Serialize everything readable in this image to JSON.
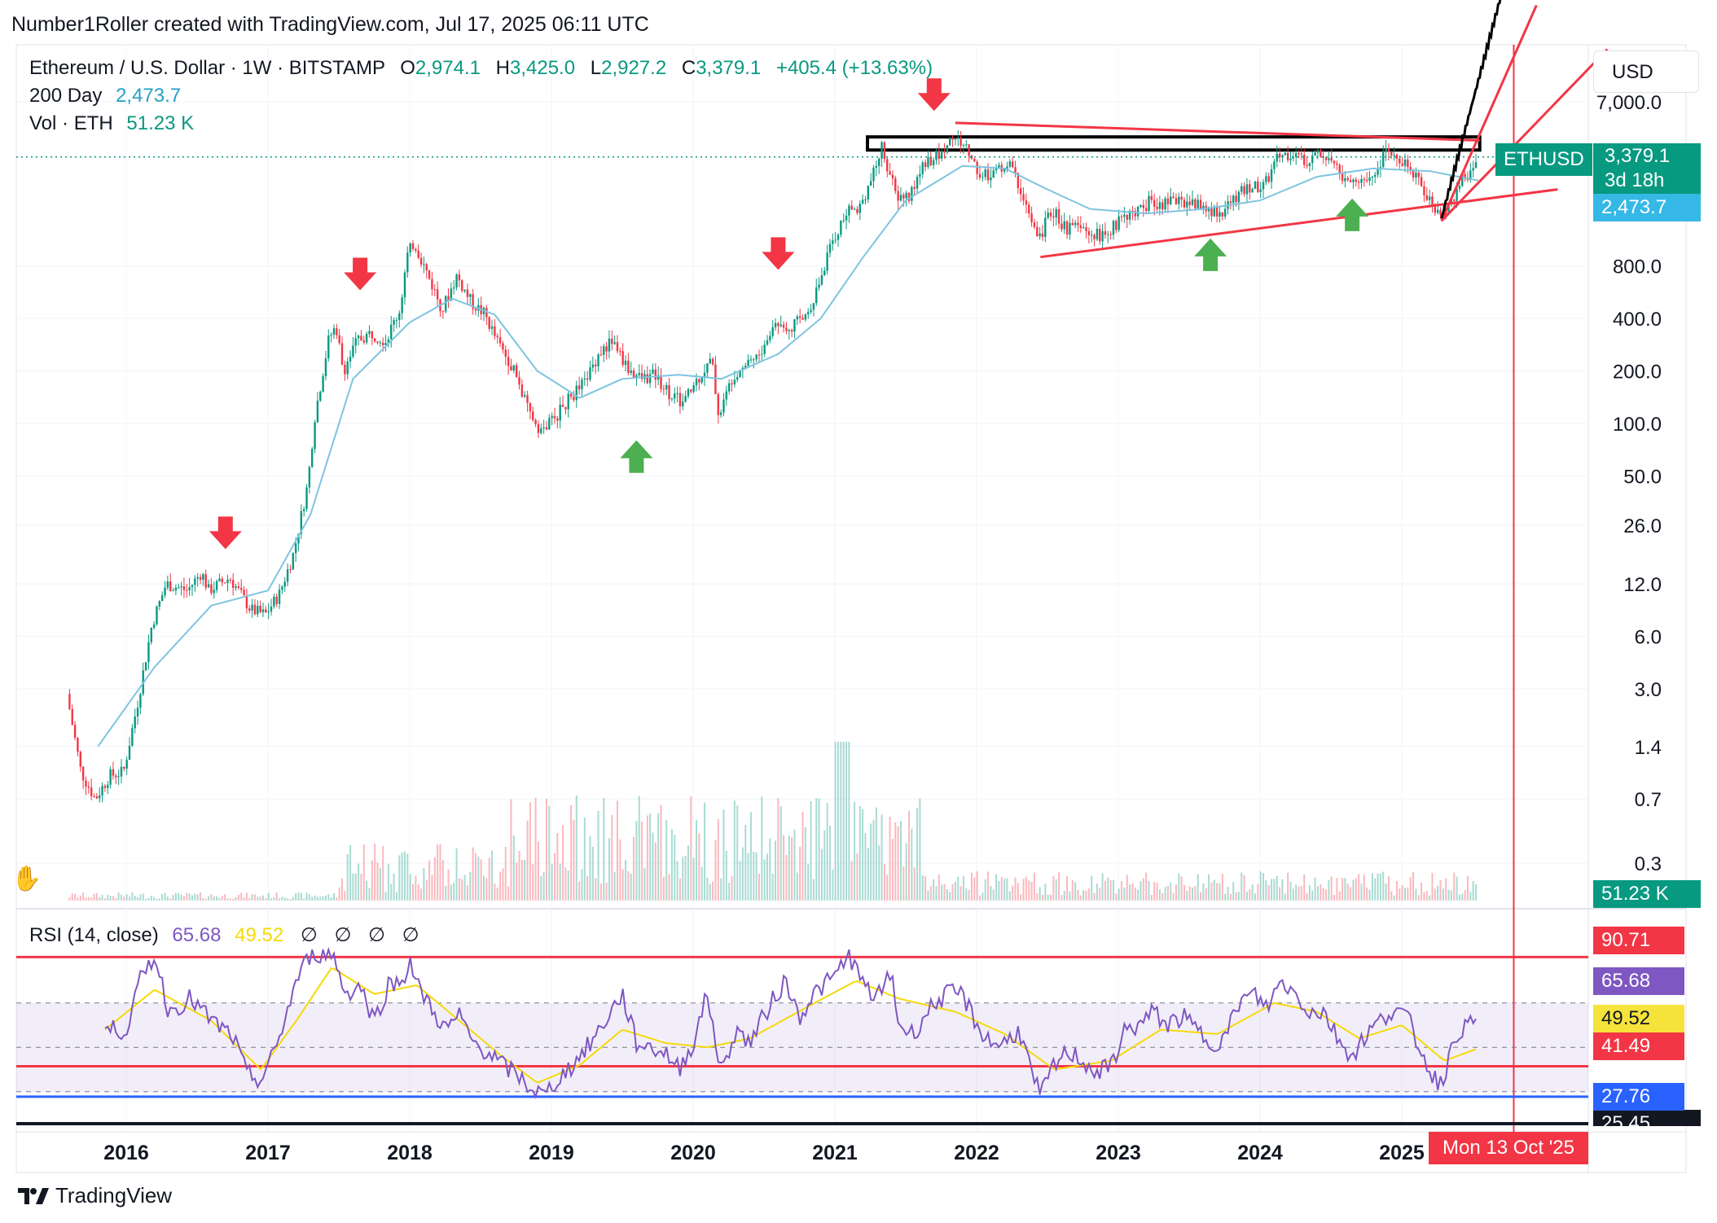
{
  "header": {
    "attribution": "Number1Roller created with TradingView.com, Jul 17, 2025 06:11 UTC"
  },
  "legend": {
    "symbol": "Ethereum / U.S. Dollar · 1W · BITSTAMP",
    "o_label": "O",
    "o_value": "2,974.1",
    "h_label": "H",
    "h_value": "3,425.0",
    "l_label": "L",
    "l_value": "2,927.2",
    "c_label": "C",
    "c_value": "3,379.1",
    "change": "+405.4 (+13.63%)",
    "ma_label": "200 Day",
    "ma_value": "2,473.7",
    "vol_label": "Vol · ETH",
    "vol_value": "51.23 K"
  },
  "currency_button": "USD",
  "price_tags": {
    "symbol": "ETHUSD",
    "last": "3,379.1",
    "countdown": "3d 18h",
    "ma": "2,473.7",
    "volume": "51.23 K"
  },
  "rsi_legend": {
    "label": "RSI (14, close)",
    "rsi": "65.68",
    "ma": "49.52",
    "empty": [
      "∅",
      "∅",
      "∅",
      "∅"
    ]
  },
  "rsi_tags": {
    "top": "90.71",
    "rsi": "65.68",
    "ma": "49.52",
    "level2": "41.49",
    "level3": "27.76",
    "bottom": "25.45"
  },
  "time_tag": "Mon 13 Oct '25",
  "footer": {
    "brand": "TradingView"
  },
  "colors": {
    "up": "#089981",
    "down": "#f23645",
    "ma200": "#7ec4e0",
    "rsi_line": "#7e57c2",
    "rsi_ma": "#f5d90a",
    "annot_red": "#f23645",
    "arrow_green": "#4caf50",
    "level_blue": "#2962ff"
  },
  "chart_data": [
    {
      "type": "candlestick",
      "title": "Ethereum / U.S. Dollar · 1W · BITSTAMP",
      "y_scale": "log",
      "y_ticks": [
        "7,000.0",
        "800.0",
        "400.0",
        "200.0",
        "100.0",
        "50.0",
        "26.0",
        "12.0",
        "6.0",
        "3.0",
        "1.4",
        "0.7",
        "0.3"
      ],
      "x_ticks": [
        "2016",
        "2017",
        "2018",
        "2019",
        "2020",
        "2021",
        "2022",
        "2023",
        "2024",
        "2025"
      ],
      "price_path": [
        [
          2015.6,
          2.8
        ],
        [
          2015.7,
          1.0
        ],
        [
          2015.8,
          0.7
        ],
        [
          2015.9,
          0.95
        ],
        [
          2016.0,
          1.0
        ],
        [
          2016.1,
          2.5
        ],
        [
          2016.2,
          7.0
        ],
        [
          2016.3,
          12.0
        ],
        [
          2016.45,
          11.0
        ],
        [
          2016.55,
          14.0
        ],
        [
          2016.6,
          11.0
        ],
        [
          2016.75,
          13.0
        ],
        [
          2016.9,
          8.5
        ],
        [
          2017.0,
          8.0
        ],
        [
          2017.1,
          10.5
        ],
        [
          2017.2,
          18
        ],
        [
          2017.3,
          45
        ],
        [
          2017.35,
          110
        ],
        [
          2017.45,
          310
        ],
        [
          2017.5,
          360
        ],
        [
          2017.55,
          200
        ],
        [
          2017.65,
          300
        ],
        [
          2017.75,
          330
        ],
        [
          2017.85,
          300
        ],
        [
          2017.95,
          450
        ],
        [
          2018.0,
          900
        ],
        [
          2018.05,
          1100
        ],
        [
          2018.15,
          700
        ],
        [
          2018.25,
          450
        ],
        [
          2018.35,
          700
        ],
        [
          2018.45,
          500
        ],
        [
          2018.55,
          420
        ],
        [
          2018.65,
          280
        ],
        [
          2018.75,
          210
        ],
        [
          2018.85,
          120
        ],
        [
          2018.95,
          90
        ],
        [
          2019.05,
          110
        ],
        [
          2019.15,
          140
        ],
        [
          2019.25,
          170
        ],
        [
          2019.35,
          250
        ],
        [
          2019.45,
          300
        ],
        [
          2019.55,
          210
        ],
        [
          2019.65,
          180
        ],
        [
          2019.75,
          190
        ],
        [
          2019.85,
          150
        ],
        [
          2019.95,
          130
        ],
        [
          2020.05,
          180
        ],
        [
          2020.15,
          230
        ],
        [
          2020.2,
          110
        ],
        [
          2020.3,
          190
        ],
        [
          2020.4,
          230
        ],
        [
          2020.5,
          250
        ],
        [
          2020.6,
          380
        ],
        [
          2020.7,
          360
        ],
        [
          2020.8,
          400
        ],
        [
          2020.9,
          600
        ],
        [
          2021.0,
          1100
        ],
        [
          2021.1,
          1600
        ],
        [
          2021.2,
          1800
        ],
        [
          2021.3,
          2800
        ],
        [
          2021.35,
          3900
        ],
        [
          2021.45,
          2000
        ],
        [
          2021.55,
          2000
        ],
        [
          2021.65,
          3200
        ],
        [
          2021.75,
          3400
        ],
        [
          2021.85,
          4400
        ],
        [
          2021.95,
          3800
        ],
        [
          2022.05,
          2600
        ],
        [
          2022.15,
          2800
        ],
        [
          2022.25,
          3100
        ],
        [
          2022.35,
          2000
        ],
        [
          2022.45,
          1100
        ],
        [
          2022.55,
          1700
        ],
        [
          2022.65,
          1300
        ],
        [
          2022.75,
          1300
        ],
        [
          2022.85,
          1200
        ],
        [
          2022.95,
          1200
        ],
        [
          2023.05,
          1600
        ],
        [
          2023.15,
          1600
        ],
        [
          2023.25,
          1900
        ],
        [
          2023.35,
          1800
        ],
        [
          2023.45,
          1900
        ],
        [
          2023.55,
          1850
        ],
        [
          2023.65,
          1650
        ],
        [
          2023.75,
          1600
        ],
        [
          2023.85,
          2000
        ],
        [
          2023.95,
          2300
        ],
        [
          2024.05,
          2300
        ],
        [
          2024.15,
          3400
        ],
        [
          2024.25,
          3500
        ],
        [
          2024.35,
          3100
        ],
        [
          2024.45,
          3700
        ],
        [
          2024.55,
          3200
        ],
        [
          2024.6,
          2500
        ],
        [
          2024.7,
          2400
        ],
        [
          2024.8,
          2600
        ],
        [
          2024.9,
          3500
        ],
        [
          2025.0,
          3400
        ],
        [
          2025.1,
          2700
        ],
        [
          2025.2,
          2000
        ],
        [
          2025.28,
          1500
        ],
        [
          2025.35,
          1800
        ],
        [
          2025.45,
          2500
        ],
        [
          2025.5,
          2600
        ],
        [
          2025.54,
          3379.1
        ]
      ],
      "ma200_path": [
        [
          2015.8,
          1.4
        ],
        [
          2016.2,
          4
        ],
        [
          2016.6,
          9
        ],
        [
          2017.0,
          11
        ],
        [
          2017.3,
          30
        ],
        [
          2017.6,
          180
        ],
        [
          2018.0,
          380
        ],
        [
          2018.3,
          520
        ],
        [
          2018.6,
          420
        ],
        [
          2018.9,
          200
        ],
        [
          2019.2,
          140
        ],
        [
          2019.5,
          180
        ],
        [
          2019.9,
          190
        ],
        [
          2020.2,
          180
        ],
        [
          2020.6,
          250
        ],
        [
          2020.9,
          400
        ],
        [
          2021.2,
          900
        ],
        [
          2021.5,
          1900
        ],
        [
          2021.9,
          3000
        ],
        [
          2022.2,
          2900
        ],
        [
          2022.5,
          2200
        ],
        [
          2022.8,
          1700
        ],
        [
          2023.2,
          1600
        ],
        [
          2023.6,
          1700
        ],
        [
          2024.0,
          1900
        ],
        [
          2024.4,
          2600
        ],
        [
          2024.8,
          2900
        ],
        [
          2025.2,
          2800
        ],
        [
          2025.54,
          2473.7
        ]
      ],
      "markers": {
        "down_arrows": [
          [
            2016.7,
            19
          ],
          [
            2017.65,
            580
          ],
          [
            2020.6,
            760
          ],
          [
            2021.7,
            6200
          ]
        ],
        "up_arrows": [
          [
            2019.6,
            80
          ],
          [
            2023.65,
            1150
          ],
          [
            2024.65,
            1950
          ]
        ]
      },
      "last": {
        "open": 2974.1,
        "high": 3425.0,
        "low": 2927.2,
        "close": 3379.1,
        "change": 405.4,
        "change_pct": 13.63
      }
    },
    {
      "type": "line",
      "title": "RSI (14, close)",
      "ylim": [
        20,
        100
      ],
      "levels": [
        90.71,
        65.68,
        49.52,
        41.49,
        27.76
      ],
      "series": [
        {
          "name": "RSI",
          "values": [
            [
              2015.85,
              58
            ],
            [
              2016.0,
              58
            ],
            [
              2016.1,
              80
            ],
            [
              2016.2,
              92
            ],
            [
              2016.3,
              66
            ],
            [
              2016.45,
              72
            ],
            [
              2016.6,
              62
            ],
            [
              2016.75,
              55
            ],
            [
              2016.85,
              38
            ],
            [
              2016.95,
              35
            ],
            [
              2017.05,
              48
            ],
            [
              2017.2,
              80
            ],
            [
              2017.3,
              92
            ],
            [
              2017.45,
              93
            ],
            [
              2017.55,
              74
            ],
            [
              2017.65,
              78
            ],
            [
              2017.75,
              62
            ],
            [
              2017.85,
              78
            ],
            [
              2017.95,
              80
            ],
            [
              2018.0,
              90
            ],
            [
              2018.05,
              78
            ],
            [
              2018.15,
              68
            ],
            [
              2018.25,
              58
            ],
            [
              2018.35,
              64
            ],
            [
              2018.45,
              52
            ],
            [
              2018.55,
              48
            ],
            [
              2018.65,
              42
            ],
            [
              2018.75,
              38
            ],
            [
              2018.85,
              32
            ],
            [
              2018.95,
              28
            ],
            [
              2019.05,
              36
            ],
            [
              2019.15,
              42
            ],
            [
              2019.3,
              54
            ],
            [
              2019.4,
              64
            ],
            [
              2019.5,
              74
            ],
            [
              2019.6,
              52
            ],
            [
              2019.7,
              50
            ],
            [
              2019.8,
              48
            ],
            [
              2019.9,
              40
            ],
            [
              2020.0,
              52
            ],
            [
              2020.1,
              74
            ],
            [
              2020.2,
              38
            ],
            [
              2020.3,
              58
            ],
            [
              2020.4,
              52
            ],
            [
              2020.55,
              70
            ],
            [
              2020.65,
              80
            ],
            [
              2020.75,
              64
            ],
            [
              2020.85,
              74
            ],
            [
              2021.0,
              82
            ],
            [
              2021.1,
              92
            ],
            [
              2021.2,
              78
            ],
            [
              2021.3,
              72
            ],
            [
              2021.4,
              84
            ],
            [
              2021.45,
              60
            ],
            [
              2021.55,
              56
            ],
            [
              2021.7,
              70
            ],
            [
              2021.8,
              74
            ],
            [
              2021.9,
              74
            ],
            [
              2022.0,
              60
            ],
            [
              2022.1,
              52
            ],
            [
              2022.2,
              52
            ],
            [
              2022.3,
              58
            ],
            [
              2022.4,
              36
            ],
            [
              2022.45,
              28
            ],
            [
              2022.55,
              42
            ],
            [
              2022.65,
              48
            ],
            [
              2022.75,
              44
            ],
            [
              2022.85,
              38
            ],
            [
              2022.95,
              42
            ],
            [
              2023.05,
              58
            ],
            [
              2023.15,
              60
            ],
            [
              2023.25,
              66
            ],
            [
              2023.35,
              60
            ],
            [
              2023.45,
              64
            ],
            [
              2023.55,
              58
            ],
            [
              2023.65,
              52
            ],
            [
              2023.75,
              54
            ],
            [
              2023.85,
              70
            ],
            [
              2023.95,
              74
            ],
            [
              2024.05,
              68
            ],
            [
              2024.15,
              80
            ],
            [
              2024.25,
              74
            ],
            [
              2024.35,
              66
            ],
            [
              2024.45,
              66
            ],
            [
              2024.55,
              54
            ],
            [
              2024.65,
              46
            ],
            [
              2024.75,
              56
            ],
            [
              2024.85,
              62
            ],
            [
              2024.95,
              68
            ],
            [
              2025.05,
              62
            ],
            [
              2025.15,
              46
            ],
            [
              2025.25,
              34
            ],
            [
              2025.3,
              38
            ],
            [
              2025.4,
              58
            ],
            [
              2025.5,
              60
            ],
            [
              2025.54,
              65.68
            ]
          ]
        },
        {
          "name": "RSI-based MA",
          "values": [
            [
              2015.85,
              58
            ],
            [
              2016.2,
              76
            ],
            [
              2016.6,
              62
            ],
            [
              2016.95,
              40
            ],
            [
              2017.2,
              62
            ],
            [
              2017.45,
              86
            ],
            [
              2017.75,
              74
            ],
            [
              2018.05,
              78
            ],
            [
              2018.35,
              62
            ],
            [
              2018.65,
              46
            ],
            [
              2018.9,
              34
            ],
            [
              2019.2,
              42
            ],
            [
              2019.5,
              58
            ],
            [
              2019.8,
              52
            ],
            [
              2020.1,
              50
            ],
            [
              2020.4,
              54
            ],
            [
              2020.8,
              68
            ],
            [
              2021.15,
              80
            ],
            [
              2021.45,
              72
            ],
            [
              2021.85,
              66
            ],
            [
              2022.2,
              56
            ],
            [
              2022.55,
              40
            ],
            [
              2022.95,
              44
            ],
            [
              2023.3,
              58
            ],
            [
              2023.7,
              56
            ],
            [
              2024.1,
              70
            ],
            [
              2024.4,
              66
            ],
            [
              2024.7,
              54
            ],
            [
              2025.0,
              60
            ],
            [
              2025.3,
              44
            ],
            [
              2025.54,
              49.52
            ]
          ]
        }
      ]
    }
  ]
}
